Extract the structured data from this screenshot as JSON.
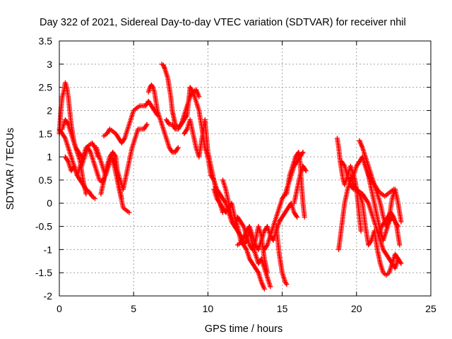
{
  "chart_data": {
    "type": "scatter",
    "title": "Day 322 of 2021, Sidereal Day-to-day VTEC variation (SDTVAR) for receiver nhil",
    "xlabel": "GPS time / hours",
    "ylabel": "SDTVAR / TECUs",
    "xlim": [
      0,
      25
    ],
    "ylim": [
      -2,
      3.5
    ],
    "xticks": [
      0,
      5,
      10,
      15,
      20,
      25
    ],
    "yticks": [
      -2,
      -1.5,
      -1,
      -0.5,
      0,
      0.5,
      1,
      1.5,
      2,
      2.5,
      3,
      3.5
    ],
    "xtick_labels": [
      "0",
      "5",
      "10",
      "15",
      "20",
      "25"
    ],
    "ytick_labels": [
      "-2",
      "-1.5",
      "-1",
      "-0.5",
      "0",
      "0.5",
      "1",
      "1.5",
      "2",
      "2.5",
      "3",
      "3.5"
    ],
    "grid": true,
    "marker": "plus",
    "color": "#ff0000",
    "series": [
      {
        "x": [
          0.0,
          0.1,
          0.2,
          0.3,
          0.4,
          0.5,
          0.6,
          0.7,
          0.8,
          0.9,
          1.0,
          1.1,
          1.2,
          1.3,
          1.4,
          1.5
        ],
        "y": [
          1.5,
          2.0,
          2.3,
          2.4,
          2.6,
          2.5,
          2.3,
          2.0,
          1.7,
          1.5,
          1.3,
          1.2,
          1.15,
          1.1,
          1.05,
          1.0
        ]
      },
      {
        "x": [
          0.0,
          0.2,
          0.4,
          0.6,
          0.8,
          1.0,
          1.2,
          1.4,
          1.6,
          1.8,
          2.0,
          2.2,
          2.4
        ],
        "y": [
          1.6,
          1.5,
          1.4,
          1.2,
          1.0,
          0.8,
          0.6,
          0.5,
          0.4,
          0.3,
          0.25,
          0.15,
          0.1
        ]
      },
      {
        "x": [
          0.2,
          0.4,
          0.6,
          0.8,
          1.0,
          1.2,
          1.4,
          1.6,
          1.8
        ],
        "y": [
          1.6,
          1.8,
          1.7,
          1.5,
          1.3,
          1.1,
          0.9,
          0.5,
          0.2
        ]
      },
      {
        "x": [
          0.4,
          0.6,
          0.8,
          1.0,
          1.2,
          1.4,
          1.6,
          1.8,
          2.0,
          2.2,
          2.4,
          2.6
        ],
        "y": [
          1.0,
          0.9,
          0.7,
          0.8,
          0.6,
          0.8,
          1.0,
          1.2,
          1.25,
          1.3,
          1.2,
          1.0
        ]
      },
      {
        "x": [
          1.5,
          1.7,
          1.9,
          2.1,
          2.3,
          2.5,
          2.7,
          2.9,
          3.1,
          3.3,
          3.5,
          3.7,
          3.9,
          4.1,
          4.3,
          4.5,
          4.7
        ],
        "y": [
          0.8,
          1.0,
          1.2,
          1.1,
          0.9,
          0.7,
          0.5,
          0.45,
          0.6,
          0.8,
          1.0,
          0.8,
          0.5,
          0.2,
          -0.1,
          -0.15,
          -0.2
        ]
      },
      {
        "x": [
          2.5,
          2.7,
          2.9,
          3.1,
          3.3,
          3.5,
          3.7,
          3.9,
          4.1,
          4.3,
          4.5,
          4.7,
          4.9,
          5.1,
          5.3,
          5.5,
          5.7,
          5.9
        ],
        "y": [
          1.2,
          1.0,
          0.8,
          0.6,
          0.8,
          1.0,
          0.9,
          0.7,
          0.5,
          0.3,
          0.6,
          0.9,
          1.2,
          1.4,
          1.6,
          1.6,
          1.6,
          1.7
        ]
      },
      {
        "x": [
          3.0,
          3.2,
          3.4,
          3.6,
          3.8,
          4.0,
          4.2,
          4.4,
          4.6,
          4.8,
          5.0,
          5.2,
          5.4,
          5.6,
          5.8,
          6.0,
          6.2,
          6.4,
          6.6
        ],
        "y": [
          1.45,
          1.5,
          1.6,
          1.55,
          1.5,
          1.4,
          1.3,
          1.4,
          1.6,
          1.8,
          2.0,
          2.05,
          2.1,
          2.1,
          2.1,
          2.2,
          2.1,
          2.0,
          1.9
        ]
      },
      {
        "x": [
          2.8,
          3.0,
          3.2,
          3.4,
          3.6,
          3.8,
          4.0,
          4.2
        ],
        "y": [
          0.2,
          0.5,
          0.8,
          1.0,
          1.1,
          1.0,
          0.4,
          0.1
        ]
      },
      {
        "x": [
          6.0,
          6.1,
          6.2,
          6.3,
          6.4,
          6.5,
          6.6,
          6.8,
          7.0,
          7.2,
          7.4,
          7.6,
          7.8,
          8.0
        ],
        "y": [
          2.4,
          2.5,
          2.55,
          2.5,
          2.4,
          2.2,
          2.0,
          1.8,
          1.6,
          1.4,
          1.2,
          1.1,
          1.1,
          1.2
        ]
      },
      {
        "x": [
          6.9,
          7.0,
          7.1,
          7.2,
          7.3,
          7.4,
          7.5,
          7.6,
          7.7,
          7.8,
          8.0,
          8.2,
          8.4,
          8.6,
          8.8,
          9.0,
          9.2,
          9.4
        ],
        "y": [
          3.0,
          2.98,
          2.9,
          2.8,
          2.7,
          2.5,
          2.3,
          2.0,
          1.85,
          1.7,
          1.65,
          1.7,
          1.9,
          2.1,
          2.3,
          2.4,
          2.45,
          2.3
        ]
      },
      {
        "x": [
          7.2,
          7.4,
          7.6,
          7.8,
          8.0,
          8.2,
          8.4,
          8.6,
          8.8,
          9.0,
          9.2,
          9.4,
          9.6,
          9.8,
          10.0
        ],
        "y": [
          1.8,
          1.7,
          1.7,
          1.6,
          1.6,
          1.7,
          1.8,
          1.9,
          2.5,
          2.4,
          2.2,
          2.0,
          1.6,
          1.2,
          1.0
        ]
      },
      {
        "x": [
          8.4,
          8.6,
          8.8,
          9.0,
          9.2,
          9.4,
          9.6,
          9.8,
          10.0,
          10.2,
          10.4,
          10.6,
          10.8,
          11.0
        ],
        "y": [
          1.5,
          1.6,
          1.8,
          1.5,
          1.2,
          1.0,
          1.4,
          1.8,
          1.1,
          0.8,
          0.5,
          0.2,
          0.0,
          -0.2
        ]
      },
      {
        "x": [
          10.0,
          10.2,
          10.4,
          10.6,
          10.8,
          11.0,
          11.2,
          11.4,
          11.6,
          11.8,
          12.0,
          12.2,
          12.4,
          12.6,
          12.8,
          13.0,
          13.2,
          13.4,
          13.6,
          13.8
        ],
        "y": [
          1.0,
          0.6,
          0.5,
          0.3,
          0.2,
          0.1,
          0.0,
          -0.2,
          -0.4,
          -0.5,
          -0.6,
          -0.7,
          -0.9,
          -1.0,
          -1.2,
          -1.3,
          -1.4,
          -1.5,
          -1.7,
          -1.85
        ]
      },
      {
        "x": [
          10.4,
          10.6,
          10.8,
          11.0,
          11.2,
          11.4,
          11.6,
          11.8,
          12.0,
          12.2,
          12.4,
          12.6,
          12.8,
          13.0,
          13.2,
          13.4,
          13.6,
          13.8,
          14.0,
          14.2
        ],
        "y": [
          0.3,
          0.1,
          0.0,
          -0.1,
          -0.2,
          -0.1,
          0.0,
          -0.3,
          -0.5,
          -0.8,
          -0.9,
          -0.8,
          -0.6,
          -0.9,
          -1.1,
          -1.3,
          -1.2,
          -1.4,
          -1.6,
          -1.8
        ]
      },
      {
        "x": [
          11.0,
          11.2,
          11.4,
          11.6,
          11.8,
          12.0,
          12.2,
          12.4,
          12.6,
          12.8,
          13.0,
          13.2,
          13.4,
          13.6,
          13.8,
          14.0
        ],
        "y": [
          0.5,
          0.3,
          0.0,
          -0.3,
          -0.5,
          -0.3,
          -0.4,
          -0.5,
          -0.7,
          -0.9,
          -1.0,
          -0.8,
          -0.5,
          -0.7,
          -1.2,
          -1.5
        ]
      },
      {
        "x": [
          12.0,
          12.2,
          12.4,
          12.6,
          12.8,
          13.0,
          13.2,
          13.4,
          13.6,
          13.8,
          14.0,
          14.2,
          14.4,
          14.6,
          14.8,
          15.0,
          15.2,
          15.4,
          15.6,
          15.8,
          16.0
        ],
        "y": [
          -0.9,
          -0.85,
          -0.75,
          -0.6,
          -0.5,
          -0.7,
          -0.9,
          -1.0,
          -0.8,
          -0.6,
          -0.5,
          -0.7,
          -0.8,
          -0.6,
          -0.4,
          -0.3,
          -0.2,
          -0.1,
          0.0,
          -0.2,
          -0.3
        ]
      },
      {
        "x": [
          13.8,
          14.0,
          14.2,
          14.4,
          14.6,
          14.8,
          15.0,
          15.2,
          15.4,
          15.6,
          15.8,
          16.0,
          16.2,
          16.4
        ],
        "y": [
          -1.0,
          -0.9,
          -0.7,
          -0.5,
          -0.3,
          -0.1,
          0.1,
          0.2,
          0.4,
          0.6,
          0.8,
          0.9,
          1.0,
          1.1
        ]
      },
      {
        "x": [
          14.6,
          14.7,
          14.8,
          14.9,
          15.0,
          15.1,
          15.2,
          15.3
        ],
        "y": [
          -0.5,
          -0.8,
          -1.1,
          -1.3,
          -1.5,
          -1.6,
          -1.7,
          -1.75
        ]
      },
      {
        "x": [
          15.8,
          16.0,
          16.2,
          16.4,
          16.6
        ],
        "y": [
          0.0,
          0.3,
          0.6,
          0.8,
          0.7
        ]
      },
      {
        "x": [
          15.3,
          15.4,
          15.5,
          15.6,
          15.7,
          15.8,
          15.9,
          16.0,
          16.1,
          16.2,
          16.3,
          16.4,
          16.5
        ],
        "y": [
          0.2,
          0.4,
          0.6,
          0.7,
          0.8,
          0.9,
          1.0,
          1.05,
          1.1,
          0.9,
          0.4,
          0.0,
          -0.3
        ]
      },
      {
        "x": [
          18.7,
          18.8,
          18.9,
          19.0,
          19.1,
          19.2,
          19.3,
          19.4,
          19.5,
          19.6,
          19.7,
          19.8,
          19.9,
          20.0,
          20.1,
          20.2,
          20.3
        ],
        "y": [
          1.4,
          1.2,
          0.9,
          0.7,
          0.5,
          0.4,
          0.5,
          0.6,
          0.7,
          0.8,
          0.7,
          0.6,
          0.5,
          0.3,
          0.0,
          -0.3,
          -0.6
        ]
      },
      {
        "x": [
          18.8,
          19.0,
          19.2,
          19.4,
          19.6,
          19.8,
          20.0,
          20.2,
          20.4,
          20.6,
          20.8,
          21.0,
          21.2,
          21.4,
          21.6,
          21.8,
          22.0,
          22.2,
          22.4,
          22.6,
          22.8
        ],
        "y": [
          -1.0,
          -0.5,
          0.0,
          0.3,
          0.5,
          0.6,
          0.8,
          0.9,
          1.0,
          0.8,
          0.6,
          0.3,
          0.0,
          -0.3,
          -0.6,
          -0.8,
          -0.6,
          -0.4,
          -0.3,
          -0.4,
          -0.5
        ]
      },
      {
        "x": [
          19.0,
          19.2,
          19.4,
          19.6,
          19.8,
          20.0,
          20.2,
          20.4,
          20.6,
          20.8,
          21.0,
          21.2,
          21.4,
          21.6,
          21.8,
          22.0,
          22.2,
          22.4,
          22.6,
          22.8,
          23.0
        ],
        "y": [
          0.9,
          0.8,
          0.6,
          0.4,
          0.3,
          0.3,
          0.2,
          0.0,
          -0.5,
          -0.9,
          -0.8,
          -0.6,
          -1.0,
          -1.3,
          -1.5,
          -1.55,
          -1.5,
          -1.3,
          -1.1,
          -1.2,
          -1.3
        ]
      },
      {
        "x": [
          19.6,
          19.8,
          20.0,
          20.2,
          20.4,
          20.6,
          20.8,
          21.0,
          21.2,
          21.4,
          21.6,
          21.8,
          22.0,
          22.2,
          22.4,
          22.6,
          22.8
        ],
        "y": [
          0.6,
          0.4,
          0.3,
          0.25,
          0.2,
          0.1,
          0.0,
          -0.2,
          -0.4,
          -0.6,
          -0.8,
          -1.0,
          -1.1,
          -1.2,
          -1.3,
          -1.4,
          -1.2
        ]
      },
      {
        "x": [
          20.2,
          20.4,
          20.6,
          20.8,
          21.0,
          21.2,
          21.4,
          21.6,
          21.8,
          22.0,
          22.2,
          22.4,
          22.6,
          22.8,
          23.0
        ],
        "y": [
          1.35,
          1.2,
          1.0,
          0.8,
          0.6,
          0.4,
          0.2,
          0.0,
          -0.3,
          -0.5,
          -0.3,
          0.1,
          0.3,
          0.0,
          -0.4
        ]
      },
      {
        "x": [
          20.5,
          20.7,
          20.9,
          21.1,
          21.3,
          21.5,
          21.7,
          21.9,
          22.1,
          22.3,
          22.5
        ],
        "y": [
          0.9,
          0.7,
          0.55,
          0.45,
          0.35,
          0.25,
          0.2,
          0.15,
          0.2,
          0.25,
          0.3
        ]
      },
      {
        "x": [
          21.5,
          21.7,
          21.9,
          22.1,
          22.3,
          22.5,
          22.7,
          22.9
        ],
        "y": [
          -0.7,
          -0.5,
          -0.4,
          -0.3,
          -0.2,
          -0.3,
          -0.5,
          -0.9
        ]
      }
    ]
  }
}
